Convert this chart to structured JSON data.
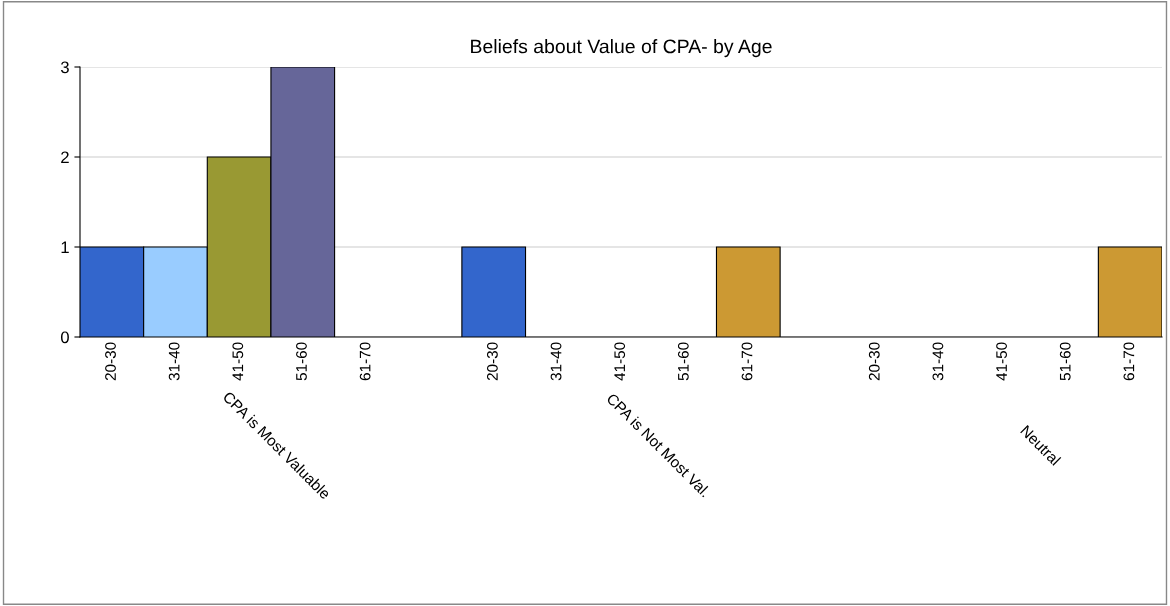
{
  "chart_data": {
    "type": "bar",
    "title": "Beliefs about Value of CPA- by Age",
    "categories": [
      "CPA is Most Valuable",
      "CPA is Not Most Val.",
      "Neutral"
    ],
    "series": [
      {
        "name": "20-30",
        "color": "#3366cc",
        "values": [
          1,
          1,
          0
        ]
      },
      {
        "name": "31-40",
        "color": "#99ccff",
        "values": [
          1,
          0,
          0
        ]
      },
      {
        "name": "41-50",
        "color": "#999933",
        "values": [
          2,
          0,
          0
        ]
      },
      {
        "name": "51-60",
        "color": "#666699",
        "values": [
          3,
          0,
          0
        ]
      },
      {
        "name": "61-70",
        "color": "#cc9933",
        "values": [
          0,
          1,
          1
        ]
      }
    ],
    "ylim": [
      0,
      3
    ],
    "yticks": [
      0,
      1,
      2,
      3
    ],
    "grid": "y",
    "legend": false
  }
}
